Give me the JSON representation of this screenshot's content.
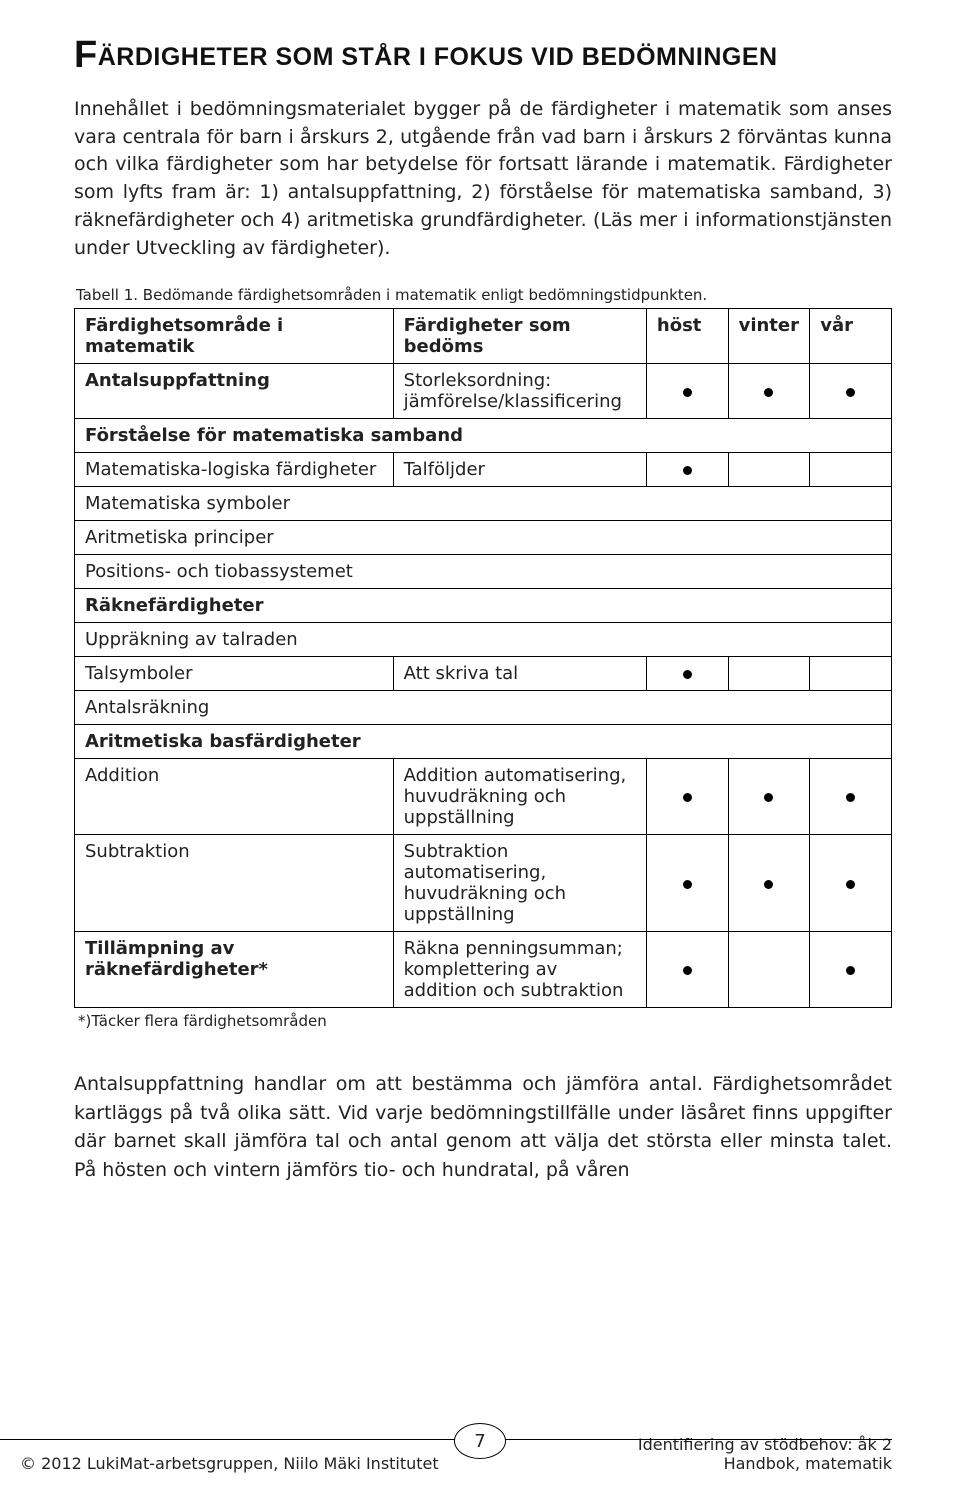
{
  "title_drop": "F",
  "title_rest": "ärdigheter som står i fokus vid bedömningen",
  "para1": "Innehållet i bedömningsmaterialet bygger på de färdigheter i matematik som anses vara centrala för barn i årskurs 2, utgående från vad barn i årskurs 2 förväntas kunna och vilka färdigheter som har betydelse för fortsatt lärande i matematik. Färdigheter som lyfts fram är: 1) antalsuppfattning, 2) förståelse för matematiska samband, 3) räknefärdigheter och 4) aritmetiska grundfärdigheter. (Läs mer i informationstjänsten under Utveckling av färdigheter).",
  "caption": "Tabell 1. Bedömande färdighetsområden i matematik enligt bedömningstidpunkten.",
  "footnote": "*)Täcker flera färdighetsområden",
  "para2": "Antalsuppfattning handlar om att bestämma och jämföra antal. Färdighetsområdet kartläggs på två olika sätt. Vid varje bedömningstillfälle under läsåret finns uppgifter där barnet skall jämföra tal och antal genom att välja det största eller minsta talet. På hösten och vintern jämförs tio- och hundratal, på våren",
  "hdr": {
    "a": "Färdighetsområde i matematik",
    "b": "Färdigheter som bedöms",
    "c": "höst",
    "d": "vinter",
    "e": "vår"
  },
  "rows": {
    "r1a": "Antalsuppfattning",
    "r1b": "Storleksordning: jämförelse/klassificering",
    "s1": "Förståelse för matematiska samband",
    "r2a": "Matematiska-logiska färdigheter",
    "r2b": "Talföljder",
    "r3": "Matematiska symboler",
    "r4": "Aritmetiska principer",
    "r5": "Positions- och tiobassystemet",
    "s2": "Räknefärdigheter",
    "r6": "Uppräkning av talraden",
    "r7a": "Talsymboler",
    "r7b": "Att skriva tal",
    "r8": "Antalsräkning",
    "s3": "Aritmetiska basfärdigheter",
    "r9a": "Addition",
    "r9b": "Addition automatisering, huvudräkning och uppställning",
    "r10a": "Subtraktion",
    "r10b": "Subtraktion automatisering, huvudräkning och uppställning",
    "r11a": "Tillämpning av räknefärdigheter*",
    "r11b": "Räkna penningsumman; komplettering av addition och subtraktion"
  },
  "dots": {
    "r1": [
      true,
      true,
      true
    ],
    "r2": [
      true,
      false,
      false
    ],
    "r7": [
      true,
      false,
      false
    ],
    "r9": [
      true,
      true,
      true
    ],
    "r10": [
      true,
      true,
      true
    ],
    "r11": [
      true,
      false,
      true
    ]
  },
  "dot_char": "●",
  "page_number": "7",
  "footer": {
    "left": "© 2012 LukiMat-arbetsgruppen, Niilo Mäki Institutet",
    "right1": "Identifiering av stödbehov: åk 2",
    "right2": "Handbok, matematik"
  }
}
